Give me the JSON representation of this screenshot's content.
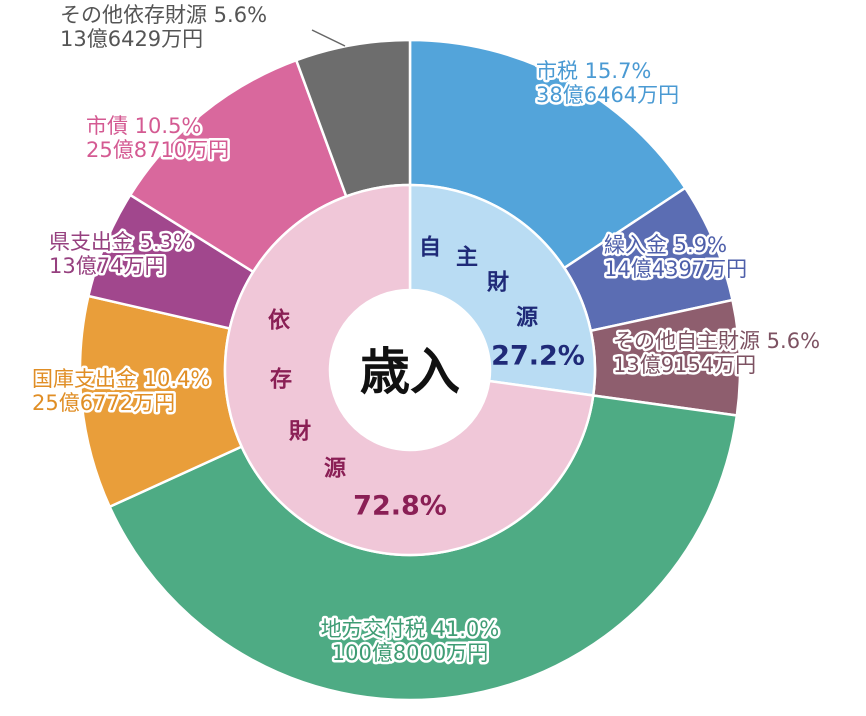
{
  "chart_data": {
    "type": "pie",
    "center_title": "歳入",
    "outer": [
      {
        "label": "市税",
        "percent": 15.7,
        "amount": "38億6464万円",
        "color": "#53a4da",
        "text_color": "#4a9ad3"
      },
      {
        "label": "繰入金",
        "percent": 5.9,
        "amount": "14億4397万円",
        "color": "#5b6db3",
        "text_color": "#4e5faa"
      },
      {
        "label": "その他自主財源",
        "percent": 5.6,
        "amount": "13億9154万円",
        "color": "#8e5e6e",
        "text_color": "#7d5262"
      },
      {
        "label": "地方交付税",
        "percent": 41.0,
        "amount": "100億8000万円",
        "color": "#4eab84",
        "text_color": "#3f9c74"
      },
      {
        "label": "国庫支出金",
        "percent": 10.4,
        "amount": "25億6772万円",
        "color": "#e99e3a",
        "text_color": "#e08e25"
      },
      {
        "label": "県支出金",
        "percent": 5.3,
        "amount": "13億74万円",
        "color": "#a1478d",
        "text_color": "#96407f"
      },
      {
        "label": "市債",
        "percent": 10.5,
        "amount": "25億8710万円",
        "color": "#d9689d",
        "text_color": "#d45a92"
      },
      {
        "label": "その他依存財源",
        "percent": 5.6,
        "amount": "13億6429万円",
        "color": "#6d6d6d",
        "text_color": "#555555"
      }
    ],
    "inner": [
      {
        "label": "自主財源",
        "percent": 27.2,
        "color": "#b9dcf3",
        "text_color": "#1f2a78"
      },
      {
        "label": "依存財源",
        "percent": 72.8,
        "color": "#f0c7d8",
        "text_color": "#8a1f55"
      }
    ]
  }
}
